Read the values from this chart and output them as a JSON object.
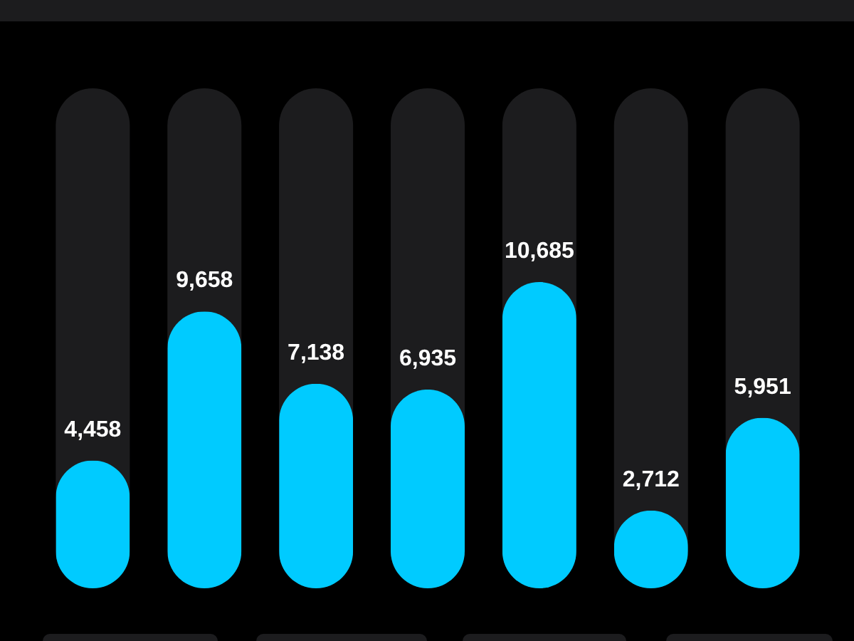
{
  "chart_data": {
    "type": "bar",
    "categories": [
      null,
      null,
      null,
      null,
      null,
      null,
      null
    ],
    "values": [
      4458,
      9658,
      7138,
      6935,
      10685,
      2712,
      5951
    ],
    "value_labels": [
      "4,458",
      "9,658",
      "7,138",
      "6,935",
      "10,685",
      "2,712",
      "5,951"
    ],
    "color": "#00cbff",
    "tick_labels": false
  }
}
